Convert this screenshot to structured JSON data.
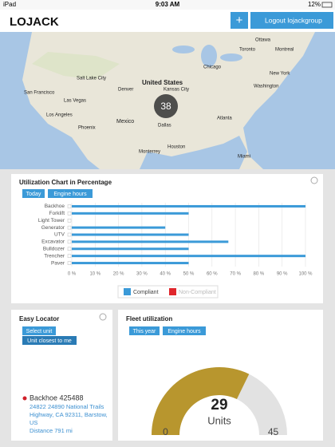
{
  "status_bar": {
    "device": "iPad",
    "time": "9:03 AM",
    "battery": "12%"
  },
  "header": {
    "logo": "LOJACK",
    "add_button": "+",
    "logout_button": "Logout lojackgroup"
  },
  "map": {
    "labels": [
      "United States",
      "Mexico",
      "Chicago",
      "Dallas",
      "Houston",
      "Phoenix",
      "Denver",
      "Los Angeles",
      "San Francisco",
      "Salt Lake City",
      "Toronto",
      "Ottawa",
      "New York",
      "Washington",
      "Atlanta",
      "Miami",
      "Monterrey",
      "Kansas City",
      "Las Vegas",
      "Montreal"
    ],
    "cluster": "38"
  },
  "utilization": {
    "buttons": [
      "Today",
      "Engine hours"
    ]
  },
  "chart_data": [
    {
      "type": "bar",
      "orientation": "horizontal",
      "title": "Utilization Chart in Percentage",
      "categories": [
        "Backhoe",
        "Forklift",
        "Light Tower",
        "Generator",
        "UTV",
        "Excavator",
        "Bulldozer",
        "Trencher",
        "Paver"
      ],
      "series": [
        {
          "name": "Compliant",
          "color": "#3b9ad8",
          "values": [
            100,
            50,
            0,
            40,
            50,
            67,
            50,
            100,
            50
          ]
        },
        {
          "name": "Non-Compliant",
          "color": "#e0262c",
          "values": [
            null,
            null,
            null,
            null,
            null,
            null,
            null,
            null,
            null
          ]
        }
      ],
      "xlim": [
        0,
        100
      ],
      "xticks": [
        {
          "value": 0,
          "label": "0 %"
        },
        {
          "value": 10,
          "label": "10 %"
        },
        {
          "value": 20,
          "label": "20 %"
        },
        {
          "value": 30,
          "label": "30 %"
        },
        {
          "value": 40,
          "label": "40 %"
        },
        {
          "value": 50,
          "label": "50 %"
        },
        {
          "value": 60,
          "label": "60 %"
        },
        {
          "value": 70,
          "label": "70 %"
        },
        {
          "value": 80,
          "label": "80 %"
        },
        {
          "value": 90,
          "label": "90 %"
        },
        {
          "value": 100,
          "label": "100 %"
        }
      ],
      "grid": true
    },
    {
      "type": "gauge",
      "title": "Fleet utilization",
      "value": 29,
      "label": "Units",
      "ylim": [
        0,
        45
      ],
      "color": "#b8962e"
    }
  ],
  "fleet": {
    "buttons": [
      "This year",
      "Engine hours"
    ]
  },
  "easy_locator": {
    "title": "Easy Locator",
    "buttons": [
      "Select unit",
      "Unit closest to me"
    ],
    "unit": "Backhoe 425488",
    "address": "24822 24890 National Trails Highway, CA 92311, Barstow, US",
    "distance": "Distance 791 mi"
  }
}
